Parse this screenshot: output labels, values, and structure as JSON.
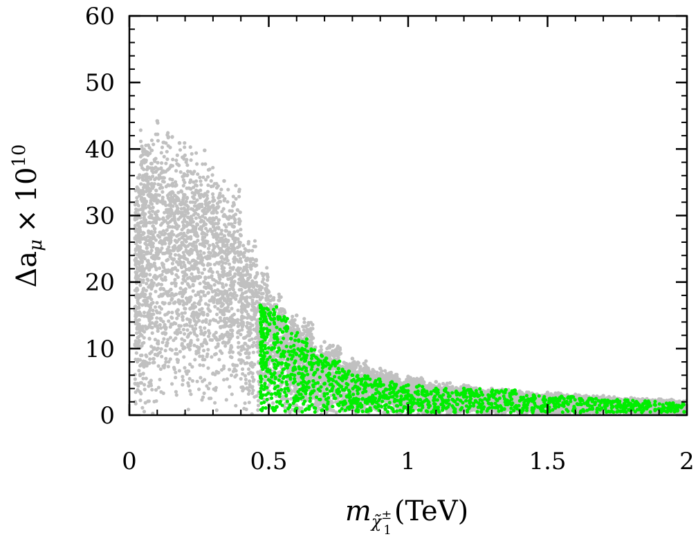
{
  "chart_data": {
    "type": "scatter",
    "title": "",
    "xlabel": {
      "main": "m",
      "sub_base": "χ̃",
      "sub_sup": "±",
      "sub_sub": "1",
      "unit": "(TeV)"
    },
    "ylabel": {
      "main": "Δa",
      "sub": "μ",
      "times": "×",
      "power_base": "10",
      "power_exp": "10"
    },
    "xlim": [
      0,
      2
    ],
    "ylim": [
      0,
      60
    ],
    "xticks": [
      0,
      0.5,
      1,
      1.5,
      2
    ],
    "xtick_labels": [
      "0",
      "0.5",
      "1",
      "1.5",
      "2"
    ],
    "yticks": [
      0,
      10,
      20,
      30,
      40,
      50,
      60
    ],
    "ytick_labels": [
      "0",
      "10",
      "20",
      "30",
      "40",
      "50",
      "60"
    ],
    "grid": false,
    "legend": "none",
    "colors": {
      "gray": "#c0c0c0",
      "green": "#00ee00"
    },
    "series": [
      {
        "color": "#c0c0c0",
        "description_points": [
          [
            0.1,
            44.2
          ],
          [
            0.14,
            41.8
          ],
          [
            0.18,
            40.9
          ],
          [
            0.27,
            39.8
          ],
          [
            0.08,
            37.8
          ],
          [
            0.13,
            36.6
          ],
          [
            0.34,
            35.2
          ],
          [
            0.05,
            33.5
          ],
          [
            0.22,
            34.0
          ],
          [
            0.3,
            31.5
          ],
          [
            0.02,
            28.0
          ],
          [
            0.4,
            27.0
          ],
          [
            0.44,
            22.5
          ],
          [
            0.5,
            18.5
          ],
          [
            0.6,
            15.0
          ],
          [
            0.7,
            11.0
          ],
          [
            0.8,
            8.5
          ],
          [
            0.9,
            7.0
          ],
          [
            1.0,
            5.8
          ],
          [
            1.1,
            5.0
          ],
          [
            1.2,
            4.5
          ],
          [
            1.3,
            4.0
          ],
          [
            1.4,
            3.6
          ],
          [
            1.5,
            3.4
          ],
          [
            1.6,
            3.1
          ],
          [
            1.7,
            2.9
          ],
          [
            1.8,
            2.6
          ],
          [
            1.9,
            2.4
          ],
          [
            2.0,
            2.2
          ]
        ]
      },
      {
        "color": "#00ee00",
        "description_points": [
          [
            0.47,
            16.5
          ],
          [
            0.48,
            15.8
          ],
          [
            0.5,
            15.2
          ],
          [
            0.52,
            14.5
          ],
          [
            0.55,
            12.5
          ],
          [
            0.58,
            11.5
          ],
          [
            0.62,
            10.0
          ],
          [
            0.66,
            9.0
          ],
          [
            0.7,
            8.2
          ],
          [
            0.75,
            7.0
          ],
          [
            0.8,
            6.0
          ],
          [
            0.85,
            5.5
          ],
          [
            0.9,
            5.0
          ],
          [
            1.0,
            4.5
          ],
          [
            1.1,
            4.0
          ],
          [
            1.2,
            4.0
          ],
          [
            1.3,
            3.5
          ],
          [
            1.35,
            3.8
          ],
          [
            1.45,
            3.0
          ],
          [
            1.55,
            2.8
          ],
          [
            1.65,
            2.5
          ],
          [
            1.75,
            2.3
          ],
          [
            1.85,
            2.1
          ],
          [
            1.95,
            1.8
          ],
          [
            0.47,
            3.5
          ],
          [
            0.6,
            1.0
          ],
          [
            0.8,
            1.2
          ],
          [
            1.0,
            0.8
          ],
          [
            1.5,
            0.6
          ],
          [
            1.99,
            0.5
          ]
        ]
      }
    ]
  }
}
